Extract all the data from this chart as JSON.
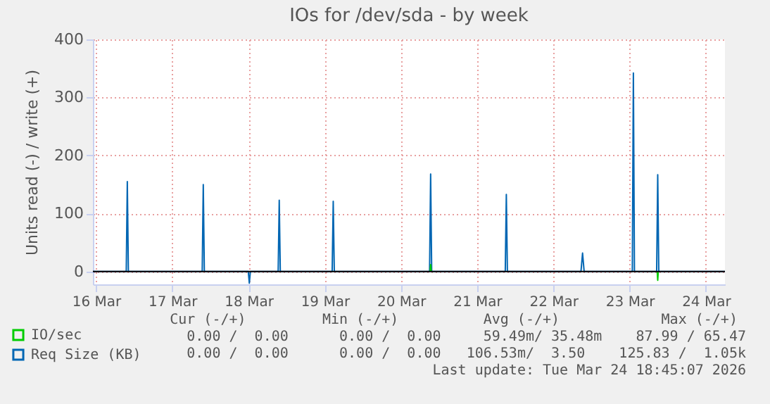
{
  "chart_data": {
    "type": "line",
    "title": "IOs for /dev/sda - by week",
    "ylabel": "Units read (-) / write (+)",
    "x": [
      "2026-03-16T11:00",
      "2026-03-16T21:30",
      "2026-03-16T21:50",
      "2026-03-16T22:10",
      "2026-03-17T21:25",
      "2026-03-17T21:45",
      "2026-03-17T22:05",
      "2026-03-18T11:55",
      "2026-03-18T12:15",
      "2026-03-18T12:35",
      "2026-03-18T21:20",
      "2026-03-18T21:40",
      "2026-03-18T22:00",
      "2026-03-19T14:20",
      "2026-03-19T14:40",
      "2026-03-19T15:00",
      "2026-03-20T21:00",
      "2026-03-20T21:20",
      "2026-03-20T21:40",
      "2026-03-21T20:50",
      "2026-03-21T21:10",
      "2026-03-21T21:30",
      "2026-03-22T20:40",
      "2026-03-22T21:10",
      "2026-03-22T21:40",
      "2026-03-23T12:50",
      "2026-03-23T13:10",
      "2026-03-23T13:30",
      "2026-03-23T20:30",
      "2026-03-23T20:50",
      "2026-03-23T21:10",
      "2026-03-24T18:00"
    ],
    "series": [
      {
        "name": "IO/sec",
        "color": "#00cc00",
        "x": [
          "2026-03-20T21:10",
          "2026-03-20T21:20",
          "2026-03-20T21:30",
          "2026-03-22T00:00",
          "2026-03-23T20:40",
          "2026-03-23T20:50",
          "2026-03-23T21:00"
        ],
        "values": [
          0,
          12,
          0,
          null,
          0,
          -15,
          0
        ]
      },
      {
        "name": "Req Size (KB)",
        "color": "#0066b3",
        "values": [
          0,
          0,
          155,
          0,
          0,
          150,
          0,
          0,
          -20,
          0,
          0,
          123,
          0,
          0,
          121,
          0,
          0,
          168,
          0,
          0,
          133,
          0,
          0,
          32,
          0,
          0,
          342,
          0,
          0,
          167,
          0,
          0
        ]
      }
    ],
    "xlim": [
      "2026-03-16T11:00",
      "2026-03-24T18:00"
    ],
    "xticks": [
      {
        "value": "2026-03-16T12:00",
        "label": "16 Mar"
      },
      {
        "value": "2026-03-17T12:00",
        "label": "17 Mar"
      },
      {
        "value": "2026-03-18T12:00",
        "label": "18 Mar"
      },
      {
        "value": "2026-03-19T12:00",
        "label": "19 Mar"
      },
      {
        "value": "2026-03-20T12:00",
        "label": "20 Mar"
      },
      {
        "value": "2026-03-21T12:00",
        "label": "21 Mar"
      },
      {
        "value": "2026-03-22T12:00",
        "label": "22 Mar"
      },
      {
        "value": "2026-03-23T12:00",
        "label": "23 Mar"
      },
      {
        "value": "2026-03-24T12:00",
        "label": "24 Mar"
      }
    ],
    "ylim": [
      -22,
      400
    ],
    "yticks": [
      0,
      100,
      200,
      300,
      400
    ],
    "grid": true,
    "legend": "bottom left",
    "ref_lines": [
      {
        "axis": "y",
        "value": 0,
        "color": "#000000"
      }
    ],
    "annotations": [
      "Cur (-/+)         Min (-/+)          Avg (-/+)            Max (-/+) ",
      "0.00 /  0.00      0.00 /  0.00     59.49m/ 35.48m    87.99 / 65.47",
      "0.00 /  0.00      0.00 /  0.00   106.53m/  3.50    125.83 /  1.05k",
      "Last update: Tue Mar 24 18:45:07 2026"
    ]
  }
}
